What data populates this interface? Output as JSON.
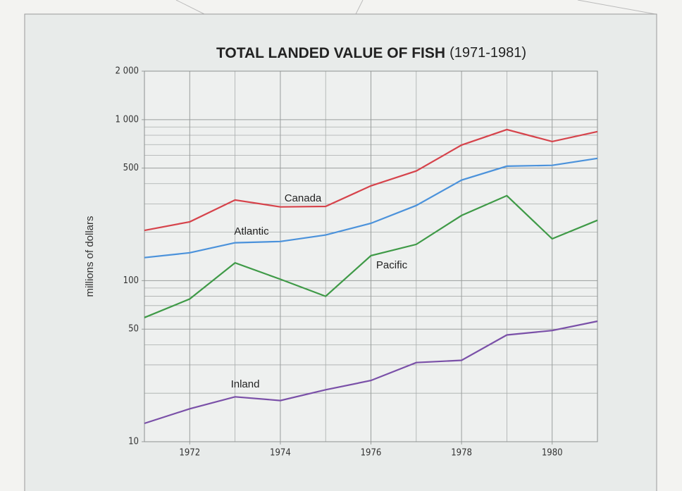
{
  "chart_data": {
    "type": "line",
    "title": "TOTAL LANDED VALUE OF FISH",
    "subtitle": "(1971-1981)",
    "y_label": "millions of dollars",
    "x": [
      1971,
      1972,
      1973,
      1974,
      1975,
      1976,
      1977,
      1978,
      1979,
      1980,
      1981
    ],
    "series": [
      {
        "name": "Canada",
        "color": "#d6434b",
        "values": [
          205,
          232,
          317,
          287,
          289,
          388,
          480,
          695,
          868,
          731,
          843
        ]
      },
      {
        "name": "Atlantic",
        "color": "#4b92db",
        "values": [
          139,
          149,
          172,
          175,
          192,
          227,
          293,
          421,
          514,
          520,
          575
        ]
      },
      {
        "name": "Pacific",
        "color": "#3f9a47",
        "values": [
          59,
          77,
          129,
          102,
          80,
          143,
          168,
          254,
          337,
          182,
          237
        ]
      },
      {
        "name": "Inland",
        "color": "#7a50a8",
        "values": [
          13,
          16,
          19,
          18,
          21,
          24,
          31,
          32,
          46,
          49,
          56
        ]
      }
    ],
    "xlim": [
      1971,
      1981
    ],
    "xticks": [
      1972,
      1974,
      1976,
      1978,
      1980
    ],
    "minor_xticks": [
      1973,
      1975,
      1977,
      1979
    ],
    "ylim": [
      10,
      2000
    ],
    "yticks": [
      10,
      50,
      100,
      500,
      {
        "value": 1000,
        "label": "1 000"
      },
      {
        "value": 2000,
        "label": "2 000"
      }
    ],
    "minor_yticks": [
      20,
      30,
      40,
      60,
      70,
      80,
      90,
      200,
      300,
      400,
      600,
      700,
      800,
      900
    ],
    "log_y": true,
    "grid": true
  }
}
